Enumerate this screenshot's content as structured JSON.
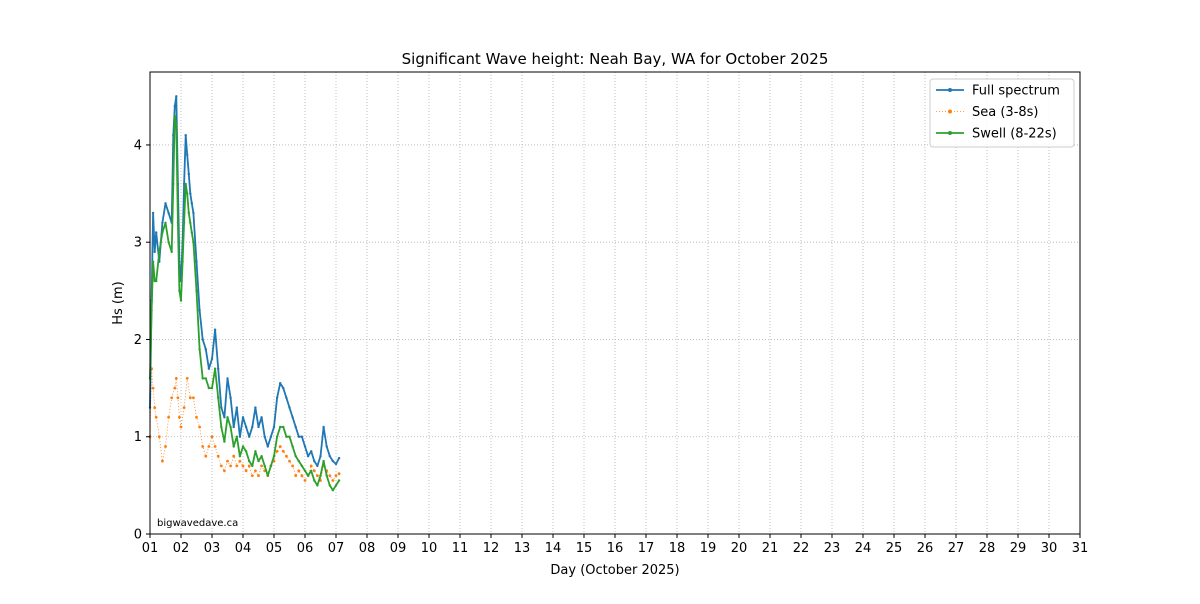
{
  "chart_data": {
    "type": "line",
    "title": "Significant Wave height: Neah Bay, WA for October 2025",
    "xlabel": "Day (October 2025)",
    "ylabel": "Hs (m)",
    "xlim": [
      1,
      31
    ],
    "ylim": [
      0,
      4.75
    ],
    "x_ticks": [
      "01",
      "02",
      "03",
      "04",
      "05",
      "06",
      "07",
      "08",
      "09",
      "10",
      "11",
      "12",
      "13",
      "14",
      "15",
      "16",
      "17",
      "18",
      "19",
      "20",
      "21",
      "22",
      "23",
      "24",
      "25",
      "26",
      "27",
      "28",
      "29",
      "30",
      "31"
    ],
    "y_ticks": [
      0,
      1,
      2,
      3,
      4
    ],
    "grid": true,
    "legend_position": "top-right",
    "watermark": "bigwavedave.ca",
    "series": [
      {
        "name": "Full spectrum",
        "color": "#1f77b4",
        "style": "solid-marker",
        "x": [
          1.0,
          1.05,
          1.1,
          1.15,
          1.2,
          1.3,
          1.4,
          1.5,
          1.6,
          1.7,
          1.75,
          1.8,
          1.85,
          1.9,
          1.95,
          2.0,
          2.05,
          2.1,
          2.15,
          2.2,
          2.25,
          2.3,
          2.35,
          2.4,
          2.5,
          2.6,
          2.7,
          2.8,
          2.9,
          3.0,
          3.1,
          3.2,
          3.3,
          3.4,
          3.5,
          3.6,
          3.7,
          3.8,
          3.9,
          4.0,
          4.1,
          4.2,
          4.3,
          4.4,
          4.5,
          4.6,
          4.7,
          4.8,
          4.9,
          5.0,
          5.1,
          5.2,
          5.3,
          5.4,
          5.5,
          5.6,
          5.7,
          5.8,
          5.9,
          6.0,
          6.1,
          6.2,
          6.3,
          6.4,
          6.5,
          6.6,
          6.7,
          6.8,
          6.9,
          7.0,
          7.1
        ],
        "values": [
          1.3,
          2.4,
          3.3,
          2.9,
          3.1,
          2.8,
          3.2,
          3.4,
          3.3,
          3.2,
          4.1,
          4.4,
          4.5,
          3.6,
          2.8,
          2.6,
          3.0,
          3.6,
          4.1,
          3.9,
          3.7,
          3.5,
          3.4,
          3.3,
          2.8,
          2.3,
          2.0,
          1.9,
          1.7,
          1.8,
          2.1,
          1.7,
          1.3,
          1.2,
          1.6,
          1.4,
          1.1,
          1.3,
          1.0,
          1.2,
          1.1,
          1.0,
          1.1,
          1.3,
          1.1,
          1.2,
          1.0,
          0.9,
          1.0,
          1.1,
          1.4,
          1.55,
          1.5,
          1.4,
          1.3,
          1.2,
          1.1,
          1.0,
          1.0,
          0.9,
          0.8,
          0.85,
          0.75,
          0.7,
          0.8,
          1.1,
          0.9,
          0.8,
          0.75,
          0.72,
          0.78
        ]
      },
      {
        "name": "Sea (3-8s)",
        "color": "#ff7f0e",
        "style": "dotted-marker",
        "x": [
          1.0,
          1.05,
          1.1,
          1.15,
          1.2,
          1.3,
          1.4,
          1.5,
          1.6,
          1.7,
          1.8,
          1.85,
          1.9,
          1.95,
          2.0,
          2.1,
          2.2,
          2.3,
          2.4,
          2.5,
          2.6,
          2.7,
          2.8,
          2.9,
          3.0,
          3.1,
          3.2,
          3.3,
          3.4,
          3.5,
          3.6,
          3.7,
          3.8,
          3.9,
          4.0,
          4.1,
          4.2,
          4.3,
          4.4,
          4.5,
          4.6,
          4.7,
          4.8,
          4.9,
          5.0,
          5.1,
          5.2,
          5.3,
          5.4,
          5.5,
          5.6,
          5.7,
          5.8,
          5.9,
          6.0,
          6.1,
          6.2,
          6.3,
          6.4,
          6.5,
          6.6,
          6.7,
          6.8,
          6.9,
          7.0,
          7.1
        ],
        "values": [
          1.0,
          1.7,
          1.5,
          1.3,
          1.2,
          1.0,
          0.75,
          0.9,
          1.2,
          1.4,
          1.5,
          1.6,
          1.4,
          1.2,
          1.1,
          1.3,
          1.6,
          1.4,
          1.4,
          1.2,
          1.1,
          0.9,
          0.8,
          0.9,
          1.0,
          0.9,
          0.8,
          0.7,
          0.65,
          0.75,
          0.7,
          0.8,
          0.7,
          0.75,
          0.7,
          0.65,
          0.7,
          0.6,
          0.65,
          0.6,
          0.7,
          0.65,
          0.6,
          0.7,
          0.75,
          0.85,
          0.9,
          0.85,
          0.8,
          0.75,
          0.7,
          0.6,
          0.65,
          0.6,
          0.55,
          0.6,
          0.7,
          0.65,
          0.6,
          0.55,
          0.7,
          0.65,
          0.6,
          0.55,
          0.6,
          0.62
        ]
      },
      {
        "name": "Swell (8-22s)",
        "color": "#2ca02c",
        "style": "solid-marker",
        "x": [
          1.0,
          1.05,
          1.1,
          1.15,
          1.2,
          1.3,
          1.4,
          1.5,
          1.6,
          1.7,
          1.75,
          1.8,
          1.85,
          1.9,
          1.95,
          2.0,
          2.05,
          2.1,
          2.15,
          2.2,
          2.25,
          2.3,
          2.35,
          2.4,
          2.5,
          2.6,
          2.7,
          2.8,
          2.9,
          3.0,
          3.1,
          3.2,
          3.3,
          3.4,
          3.5,
          3.6,
          3.7,
          3.8,
          3.9,
          4.0,
          4.1,
          4.2,
          4.3,
          4.4,
          4.5,
          4.6,
          4.7,
          4.8,
          4.9,
          5.0,
          5.1,
          5.2,
          5.3,
          5.4,
          5.5,
          5.6,
          5.7,
          5.8,
          5.9,
          6.0,
          6.1,
          6.2,
          6.3,
          6.4,
          6.5,
          6.6,
          6.7,
          6.8,
          6.9,
          7.0,
          7.1
        ],
        "values": [
          1.6,
          2.3,
          2.8,
          2.6,
          2.6,
          2.9,
          3.1,
          3.2,
          3.0,
          2.9,
          3.6,
          4.3,
          4.2,
          3.2,
          2.5,
          2.4,
          2.8,
          3.2,
          3.6,
          3.5,
          3.3,
          3.2,
          3.1,
          3.0,
          2.5,
          1.9,
          1.6,
          1.6,
          1.5,
          1.5,
          1.7,
          1.4,
          1.1,
          0.95,
          1.2,
          1.1,
          0.9,
          1.0,
          0.8,
          0.9,
          0.85,
          0.75,
          0.7,
          0.85,
          0.75,
          0.8,
          0.7,
          0.6,
          0.7,
          0.8,
          1.0,
          1.1,
          1.1,
          1.0,
          1.0,
          0.9,
          0.8,
          0.75,
          0.7,
          0.65,
          0.6,
          0.65,
          0.55,
          0.5,
          0.6,
          0.75,
          0.6,
          0.5,
          0.45,
          0.5,
          0.55
        ]
      }
    ]
  }
}
